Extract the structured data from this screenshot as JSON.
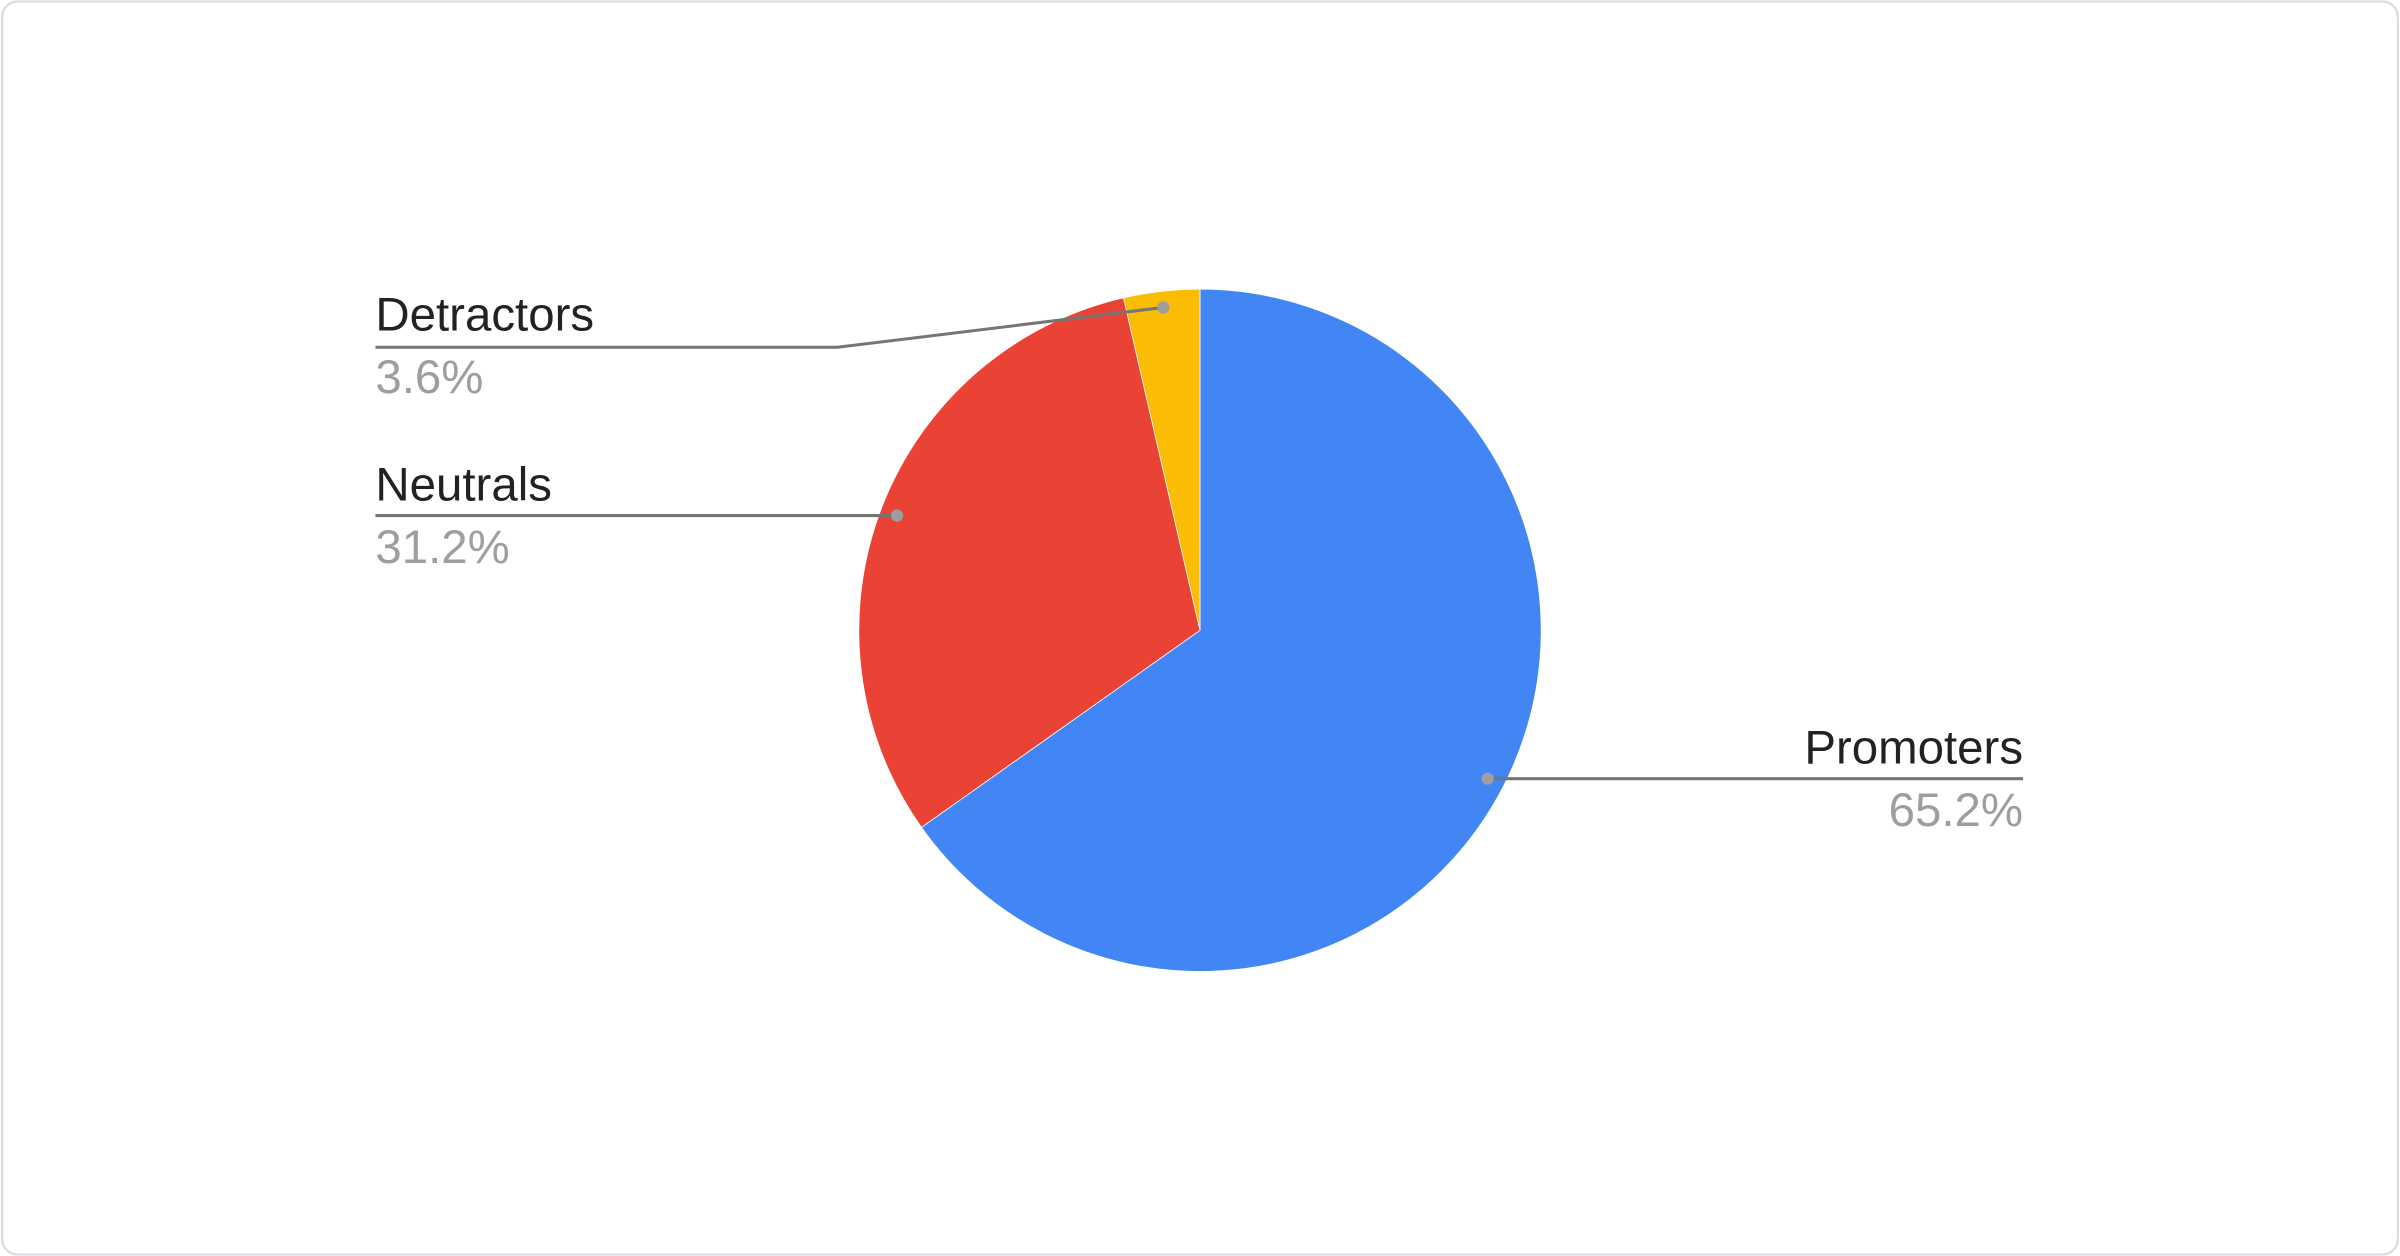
{
  "chart_data": {
    "type": "pie",
    "start_angle": "top",
    "direction": "clockwise",
    "slices": [
      {
        "label": "Promoters",
        "value": 65.2,
        "display": "65.2%",
        "color": "#4285f4"
      },
      {
        "label": "Neutrals",
        "value": 31.2,
        "display": "31.2%",
        "color": "#ea4335"
      },
      {
        "label": "Detractors",
        "value": 3.6,
        "display": "3.6%",
        "color": "#fbbc04"
      }
    ],
    "legend": "none",
    "data_labels": "outside with leader lines"
  }
}
